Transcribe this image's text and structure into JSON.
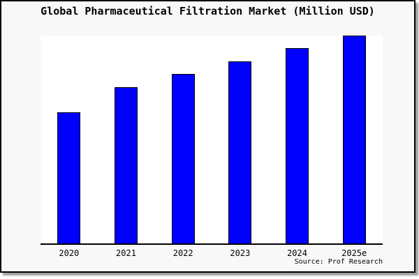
{
  "title": "Global Pharmaceutical Filtration Market (Million USD)",
  "source": "Source: Prof Research",
  "colors": {
    "bar_fill": "#0000FF",
    "bar_border": "#000000",
    "frame_background": "#F8F8F8",
    "plot_background": "#FFFFFF",
    "axis": "#000000",
    "text": "#000000",
    "shadow": "#9F9F9F"
  },
  "chart_data": {
    "type": "bar",
    "title": "Global Pharmaceutical Filtration Market (Million USD)",
    "categories": [
      "2020",
      "2021",
      "2022",
      "2023",
      "2024",
      "2025e"
    ],
    "values": [
      63,
      75.3,
      81.7,
      87.7,
      94,
      100
    ],
    "note": "No y-axis ticks, labels or gridlines are shown; values are bar heights normalized to tallest bar (2025e) = 100",
    "xlabel": "",
    "ylabel": "",
    "ylim": [
      0,
      100
    ],
    "grid": false,
    "legend": false,
    "source_label": "Source: Prof Research"
  }
}
